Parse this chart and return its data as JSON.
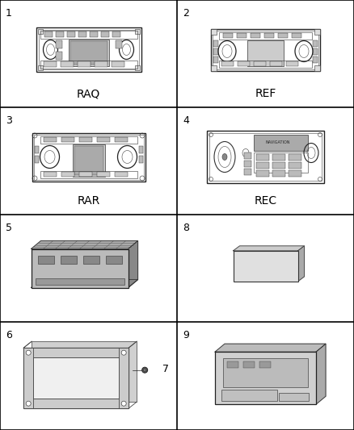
{
  "background_color": "#ffffff",
  "border_color": "#000000",
  "fig_width": 4.38,
  "fig_height": 5.33,
  "dpi": 100,
  "cells": [
    {
      "row": 0,
      "col": 0,
      "number": "1",
      "label": "RAQ",
      "type": "radio_RAQ"
    },
    {
      "row": 0,
      "col": 1,
      "number": "2",
      "label": "REF",
      "type": "radio_REF"
    },
    {
      "row": 1,
      "col": 0,
      "number": "3",
      "label": "RAR",
      "type": "radio_RAR"
    },
    {
      "row": 1,
      "col": 1,
      "number": "4",
      "label": "REC",
      "type": "radio_REC"
    },
    {
      "row": 2,
      "col": 0,
      "number": "5",
      "label": "",
      "type": "amplifier"
    },
    {
      "row": 2,
      "col": 1,
      "number": "8",
      "label": "",
      "type": "flat_box"
    },
    {
      "row": 3,
      "col": 0,
      "number": "6",
      "label": "",
      "type": "bracket",
      "extra": "7"
    },
    {
      "row": 3,
      "col": 1,
      "number": "9",
      "label": "",
      "type": "module"
    }
  ],
  "col_edges": [
    0,
    219,
    438
  ],
  "row_edges": [
    0,
    133,
    266,
    399,
    533
  ]
}
